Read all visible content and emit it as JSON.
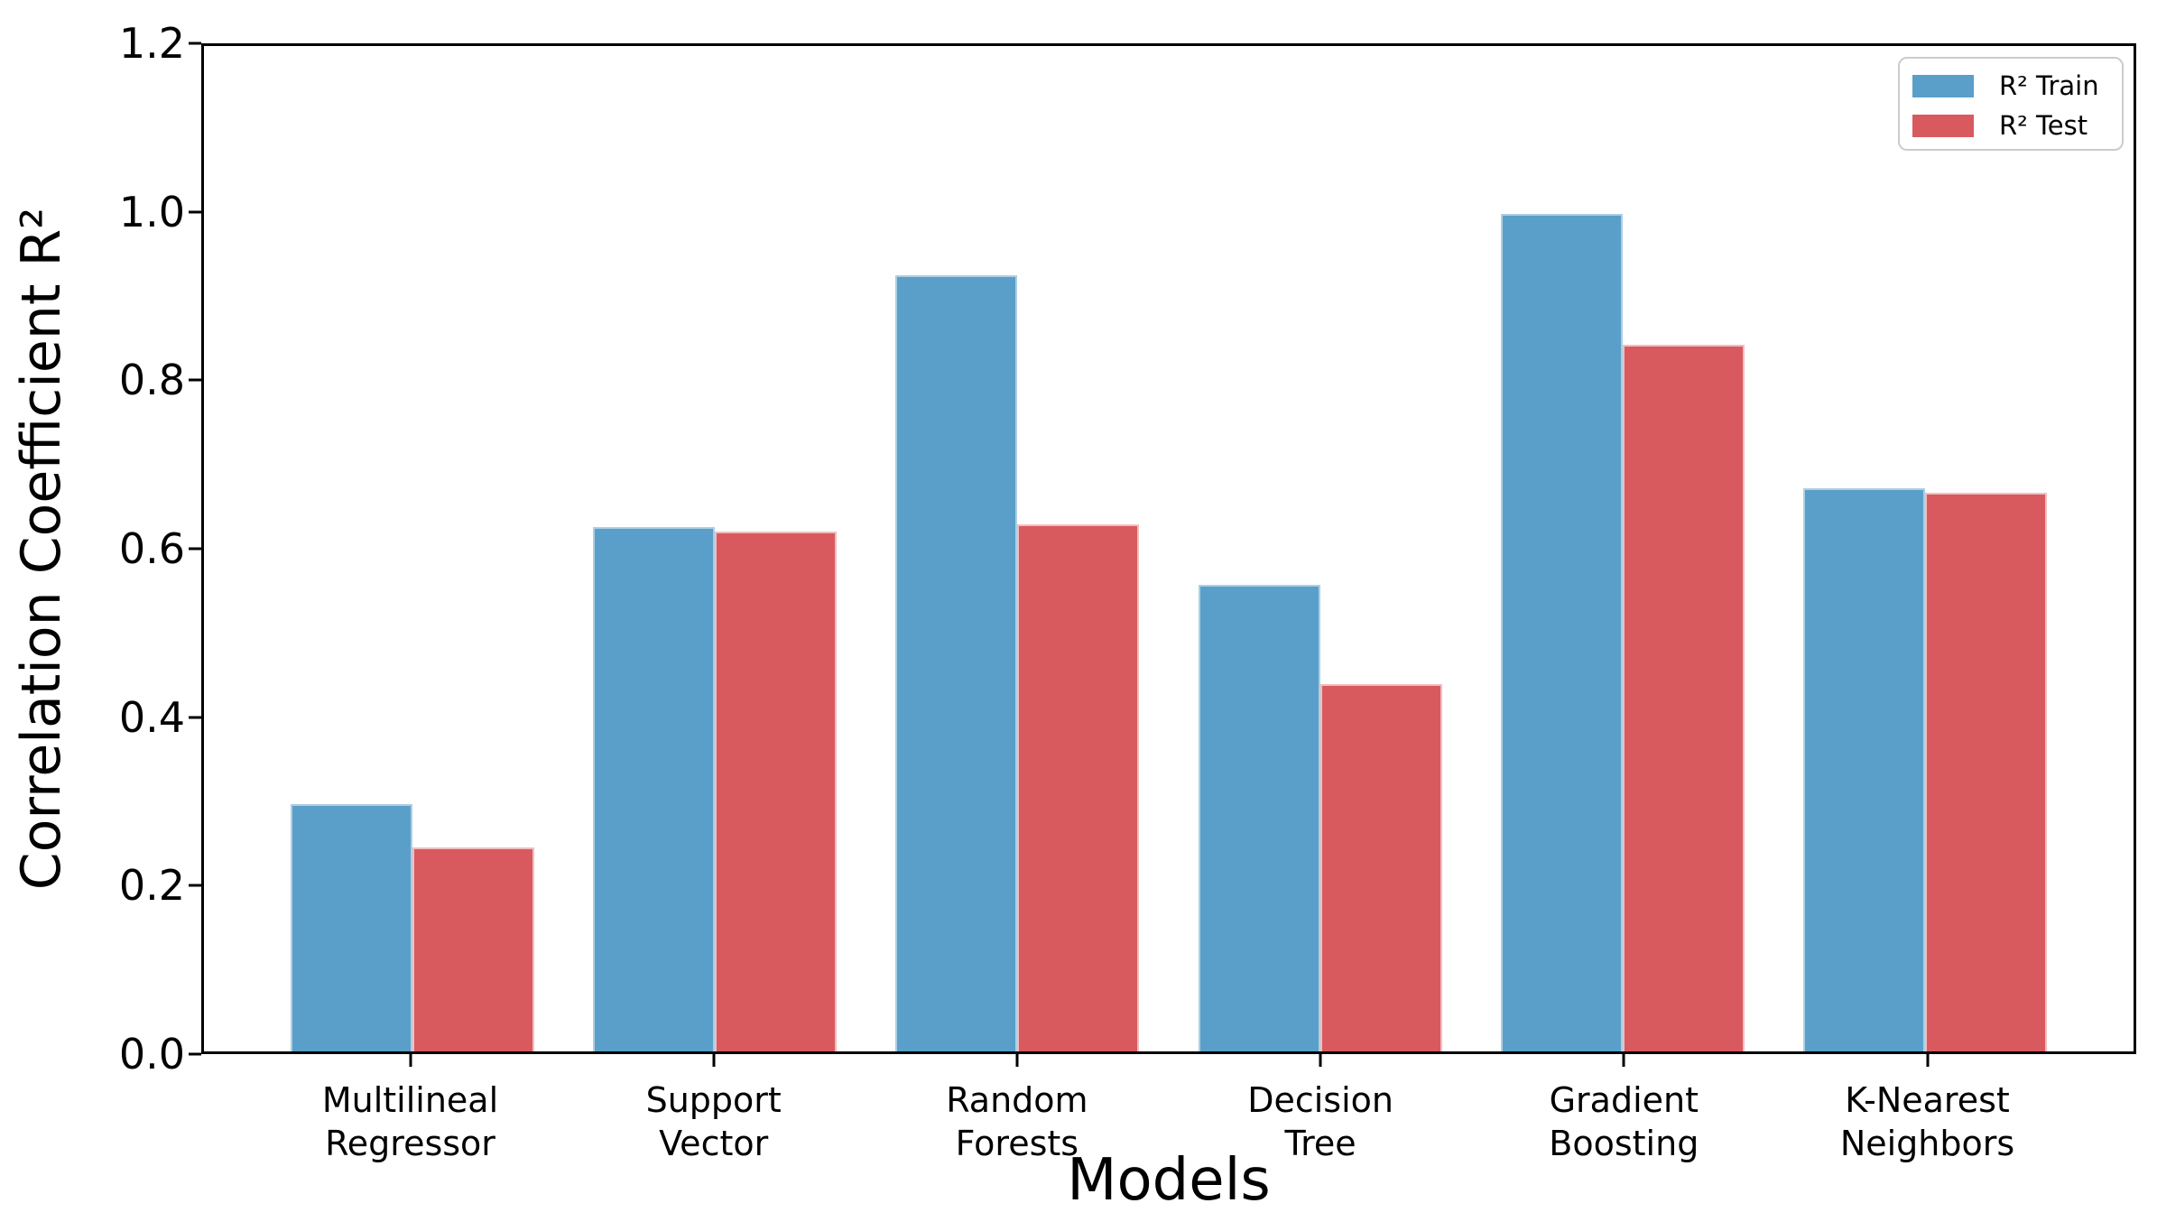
{
  "chart_data": {
    "type": "bar",
    "title": "",
    "xlabel": "Models",
    "ylabel": "Correlation Coefficient R²",
    "ylim": [
      0,
      1.2
    ],
    "yticks": [
      0.0,
      0.2,
      0.4,
      0.6,
      0.8,
      1.0,
      1.2
    ],
    "grid": false,
    "legend_position": "upper right",
    "categories": [
      "Multilineal Regressor",
      "Support Vector",
      "Random Forests",
      "Decision Tree",
      "Gradient Boosting",
      "K-Nearest Neighbors"
    ],
    "series": [
      {
        "name": "R² Train",
        "color": "#5A9FC9",
        "edge_color": "#ADCFE3",
        "values": [
          0.295,
          0.626,
          0.926,
          0.557,
          1.0,
          0.672
        ]
      },
      {
        "name": "R² Test",
        "color": "#D85A5E",
        "edge_color": "#F0BEC0",
        "values": [
          0.243,
          0.621,
          0.629,
          0.438,
          0.843,
          0.667
        ]
      }
    ]
  },
  "colors": {
    "background": "#ffffff",
    "spine": "#000000",
    "legend_border": "#cccccc"
  }
}
